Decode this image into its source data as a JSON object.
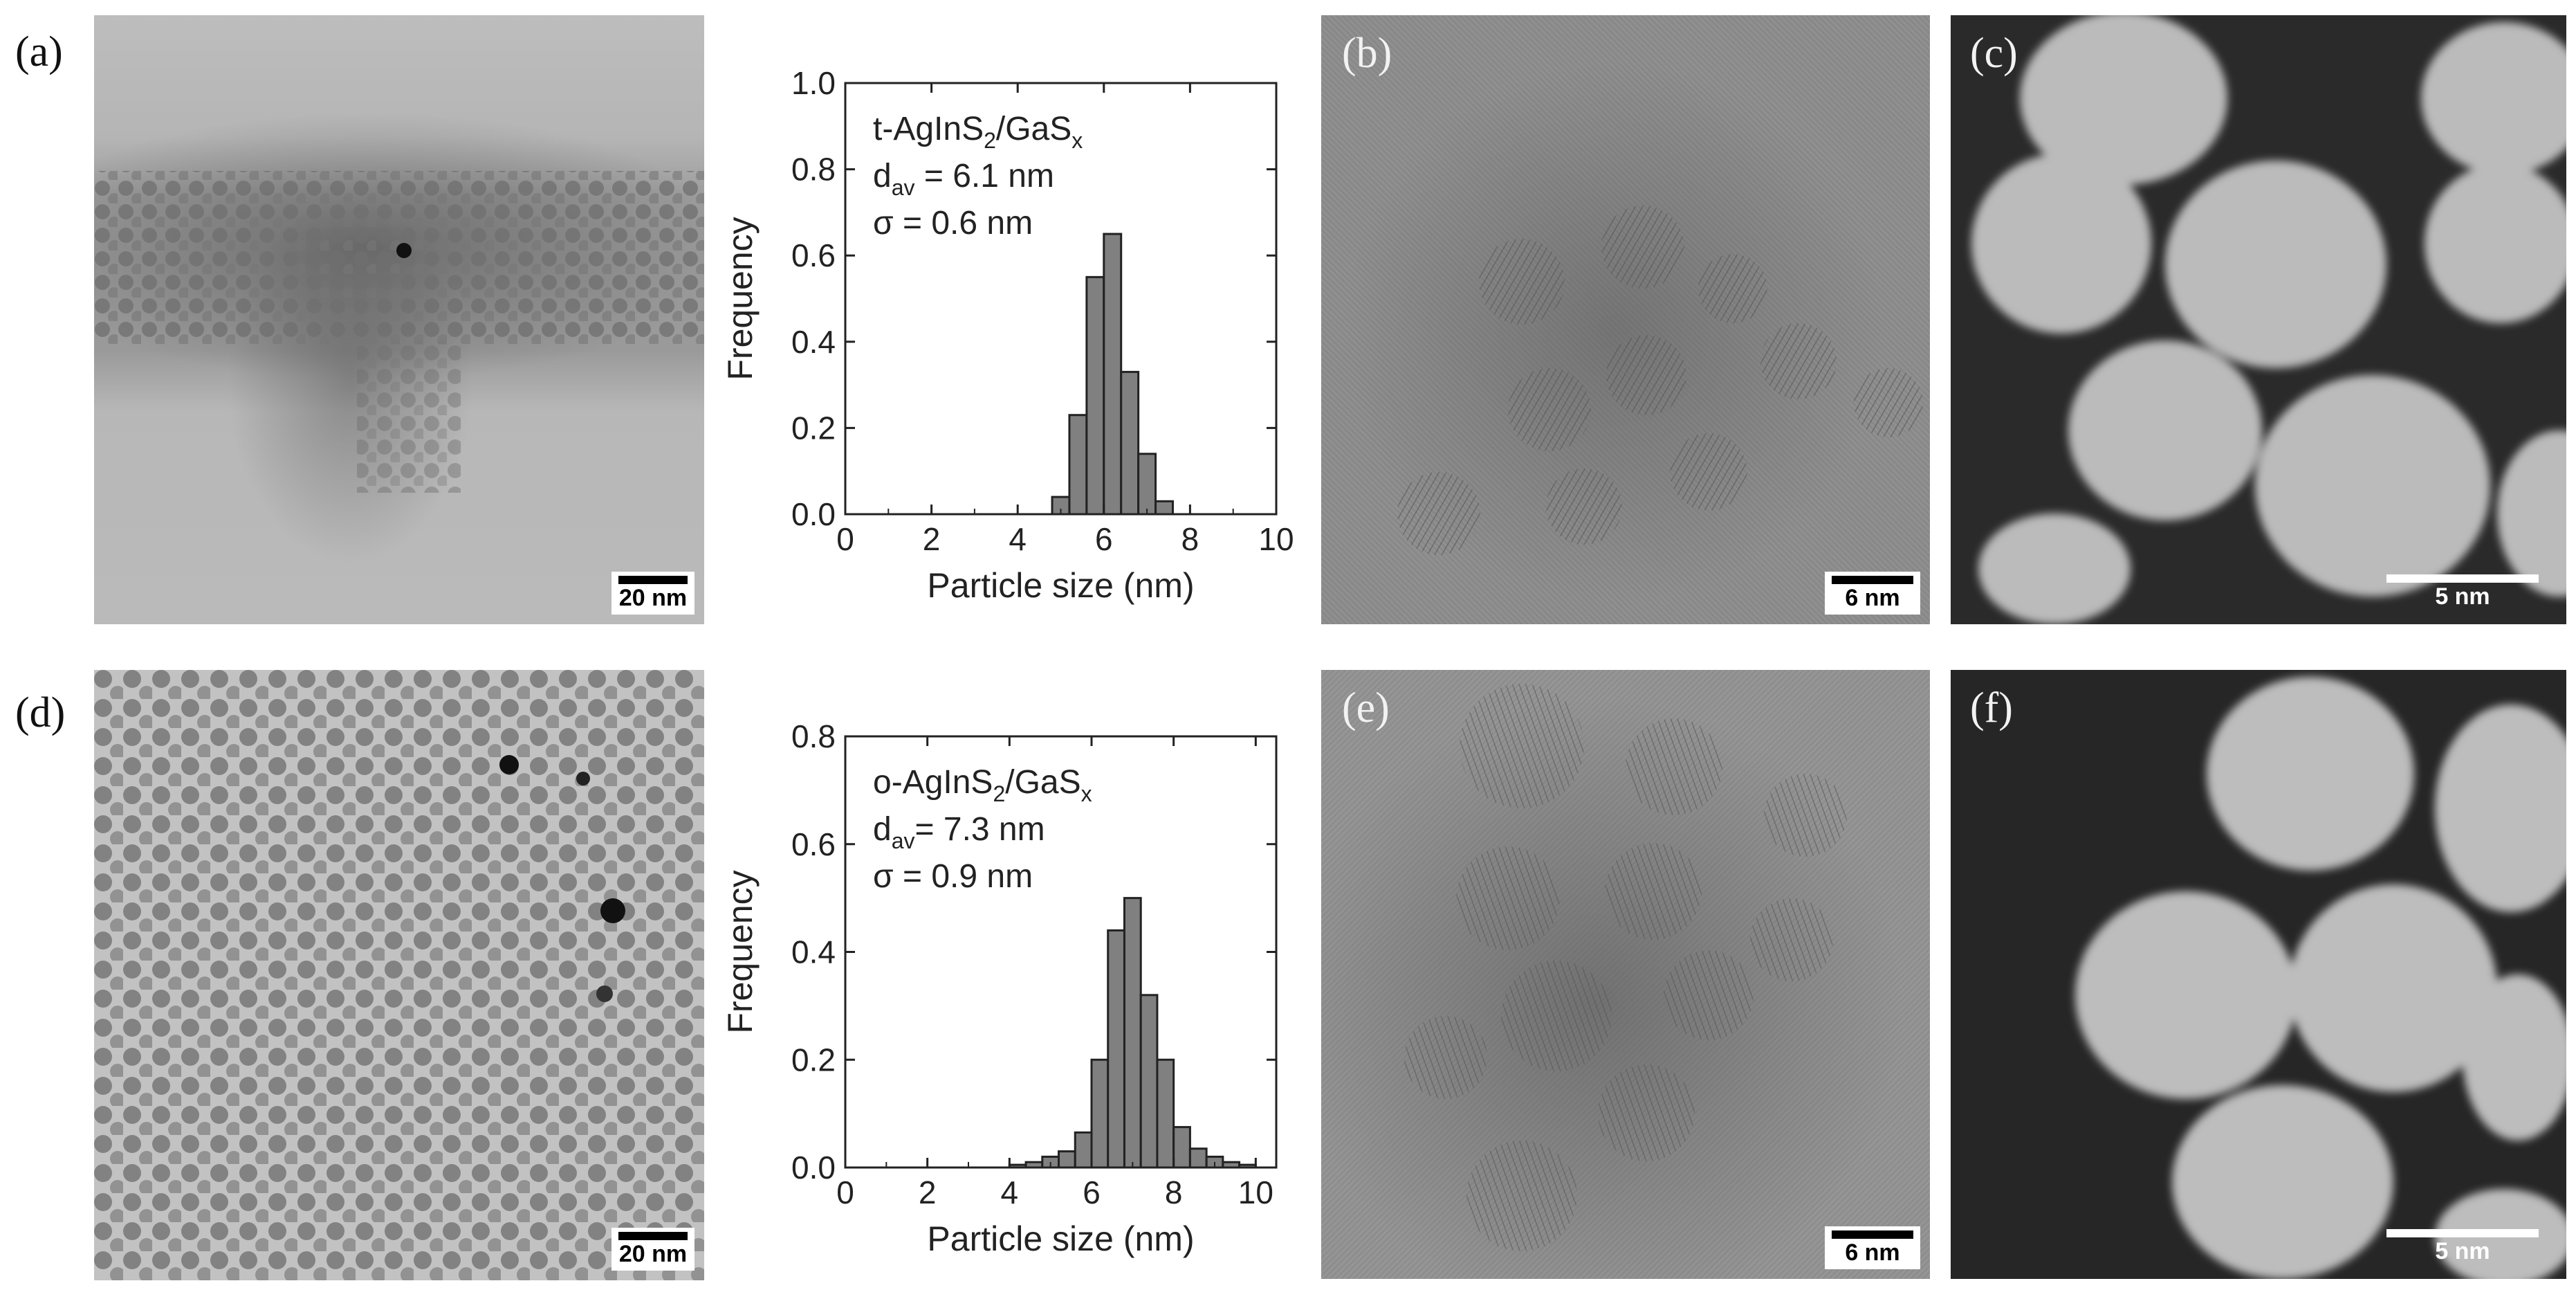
{
  "panels": {
    "a": {
      "label": "(a)",
      "scale_bar": "20 nm"
    },
    "b": {
      "label": "(b)",
      "scale_bar": "6 nm"
    },
    "c": {
      "label": "(c)",
      "scale_bar": "5 nm"
    },
    "d": {
      "label": "(d)",
      "scale_bar": "20 nm"
    },
    "e": {
      "label": "(e)",
      "scale_bar": "6 nm"
    },
    "f": {
      "label": "(f)",
      "scale_bar": "5 nm"
    }
  },
  "chart_data": [
    {
      "type": "bar",
      "panel": "a",
      "xlabel": "Particle size (nm)",
      "ylabel": "Frequency",
      "xlim": [
        0,
        10
      ],
      "ylim": [
        0,
        1.0
      ],
      "xticks": [
        0,
        2,
        4,
        6,
        8,
        10
      ],
      "yticks": [
        "0.0",
        "0.2",
        "0.4",
        "0.6",
        "0.8",
        "1.0"
      ],
      "annotation": {
        "sample": "t-AgInS",
        "sample_sub": "2",
        "shell": "/GaS",
        "shell_sub": "x",
        "d_label": "d",
        "d_sub": "av",
        "d_value": " = 6.1 nm",
        "sigma": "σ   = 0.6 nm"
      },
      "bin_width": 0.4,
      "bin_centers": [
        5.0,
        5.4,
        5.8,
        6.2,
        6.6,
        7.0,
        7.4,
        7.8
      ],
      "values": [
        0.04,
        0.23,
        0.55,
        0.65,
        0.33,
        0.14,
        0.03,
        0.0
      ],
      "bar_color": "#808080"
    },
    {
      "type": "bar",
      "panel": "d",
      "xlabel": "Particle size (nm)",
      "ylabel": "Frequency",
      "xlim": [
        0,
        10.5
      ],
      "ylim": [
        0,
        0.8
      ],
      "xticks": [
        0,
        2,
        4,
        6,
        8,
        10
      ],
      "yticks": [
        "0.0",
        "0.2",
        "0.4",
        "0.6",
        "0.8"
      ],
      "annotation": {
        "sample": "o-AgInS",
        "sample_sub": "2",
        "shell": "/GaS",
        "shell_sub": "x",
        "d_label": "d",
        "d_sub": "av",
        "d_value": "= 7.3 nm",
        "sigma": "σ   = 0.9 nm"
      },
      "bin_width": 0.4,
      "bin_centers": [
        4.2,
        4.6,
        5.0,
        5.4,
        5.8,
        6.2,
        6.6,
        7.0,
        7.4,
        7.8,
        8.2,
        8.6,
        9.0,
        9.4,
        9.8,
        10.2
      ],
      "values": [
        0.005,
        0.01,
        0.02,
        0.03,
        0.065,
        0.2,
        0.44,
        0.5,
        0.32,
        0.2,
        0.075,
        0.035,
        0.02,
        0.01,
        0.005,
        0.0
      ],
      "bar_color": "#808080"
    }
  ],
  "colors": {
    "tem_background": "#a9a9a9",
    "tem_particle": "#6a6a6a",
    "hrtem_background": "#8e8e8e",
    "haadf_background": "#2a2a2a",
    "haadf_particle": "#c8c8c8"
  }
}
